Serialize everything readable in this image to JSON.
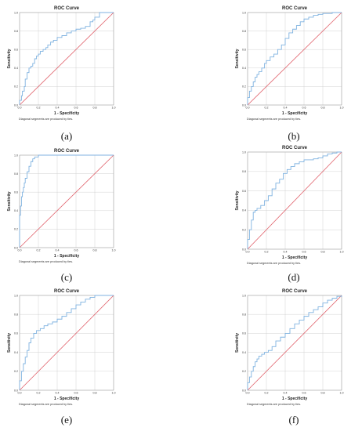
{
  "chart_data": [
    {
      "panel": "(a)",
      "type": "line",
      "title": "ROC Curve",
      "xlabel": "1 - Specificity",
      "ylabel": "Sensitivity",
      "footnote": "Diagonal segments are produced by ties.",
      "xlim": [
        0,
        1
      ],
      "ylim": [
        0,
        1
      ],
      "ticks": [
        "0.0",
        "0.2",
        "0.4",
        "0.6",
        "0.8",
        "1.0"
      ],
      "grid": true,
      "series": [
        {
          "x": [
            0,
            0,
            0.02,
            0.03,
            0.05,
            0.06,
            0.08,
            0.1,
            0.12,
            0.14,
            0.16,
            0.18,
            0.2,
            0.22,
            0.25,
            0.28,
            0.3,
            0.33,
            0.36,
            0.4,
            0.45,
            0.5,
            0.55,
            0.6,
            0.65,
            0.7,
            0.75,
            0.78,
            0.8,
            0.85,
            1.0
          ],
          "y": [
            0,
            0.05,
            0.1,
            0.15,
            0.2,
            0.28,
            0.35,
            0.4,
            0.42,
            0.45,
            0.5,
            0.53,
            0.55,
            0.58,
            0.6,
            0.62,
            0.65,
            0.68,
            0.7,
            0.73,
            0.75,
            0.78,
            0.8,
            0.82,
            0.83,
            0.85,
            0.9,
            0.92,
            0.95,
            1.0,
            1.0
          ]
        },
        {
          "x": [
            0,
            1
          ],
          "y": [
            0,
            1
          ]
        }
      ]
    },
    {
      "panel": "(b)",
      "type": "line",
      "title": "ROC Curve",
      "xlabel": "1 - Specificity",
      "ylabel": "Sensitivity",
      "footnote": "Diagonal segments are produced by ties.",
      "xlim": [
        0,
        1
      ],
      "ylim": [
        0,
        1
      ],
      "ticks": [
        "0.0",
        "0.2",
        "0.4",
        "0.6",
        "0.8",
        "1.0"
      ],
      "grid": true,
      "series": [
        {
          "x": [
            0,
            0,
            0.02,
            0.04,
            0.06,
            0.08,
            0.1,
            0.12,
            0.15,
            0.18,
            0.2,
            0.24,
            0.28,
            0.32,
            0.36,
            0.4,
            0.44,
            0.48,
            0.52,
            0.56,
            0.6,
            0.65,
            0.7,
            0.75,
            0.8,
            0.9,
            1.0
          ],
          "y": [
            0,
            0.08,
            0.15,
            0.2,
            0.25,
            0.3,
            0.33,
            0.36,
            0.4,
            0.45,
            0.48,
            0.52,
            0.55,
            0.6,
            0.65,
            0.72,
            0.78,
            0.82,
            0.86,
            0.9,
            0.93,
            0.95,
            0.97,
            0.98,
            0.99,
            1.0,
            1.0
          ]
        },
        {
          "x": [
            0,
            1
          ],
          "y": [
            0,
            1
          ]
        }
      ]
    },
    {
      "panel": "(c)",
      "type": "line",
      "title": "ROC Curve",
      "xlabel": "1 - Specificity",
      "ylabel": "Sensitivity",
      "footnote": "Diagonal segments are produced by ties.",
      "xlim": [
        0,
        1
      ],
      "ylim": [
        0,
        1
      ],
      "ticks": [
        "0.0",
        "0.2",
        "0.4",
        "0.6",
        "0.8",
        "1.0"
      ],
      "grid": true,
      "series": [
        {
          "x": [
            0,
            0,
            0.01,
            0.02,
            0.03,
            0.04,
            0.05,
            0.06,
            0.08,
            0.1,
            0.12,
            0.14,
            0.16,
            0.2,
            0.25,
            0.3,
            0.4,
            0.5,
            0.6,
            0.7,
            0.8,
            1.0
          ],
          "y": [
            0,
            0.35,
            0.45,
            0.55,
            0.6,
            0.65,
            0.7,
            0.75,
            0.82,
            0.88,
            0.93,
            0.96,
            0.98,
            1.0,
            1.0,
            1.0,
            1.0,
            1.0,
            1.0,
            1.0,
            1.0,
            1.0
          ]
        },
        {
          "x": [
            0,
            1
          ],
          "y": [
            0,
            1
          ]
        }
      ]
    },
    {
      "panel": "(d)",
      "type": "line",
      "title": "ROC Curve",
      "xlabel": "1 - Specificity",
      "ylabel": "Sensitivity",
      "footnote": "Diagonal segments are produced by ties.",
      "xlim": [
        0,
        1
      ],
      "ylim": [
        0,
        1
      ],
      "ticks": [
        "0.0",
        "0.2",
        "0.4",
        "0.6",
        "0.8",
        "1.0"
      ],
      "grid": true,
      "series": [
        {
          "x": [
            0,
            0,
            0.02,
            0.04,
            0.06,
            0.08,
            0.1,
            0.14,
            0.18,
            0.22,
            0.26,
            0.3,
            0.34,
            0.38,
            0.42,
            0.46,
            0.5,
            0.55,
            0.6,
            0.65,
            0.7,
            0.75,
            0.8,
            0.85,
            0.9,
            0.95,
            1.0
          ],
          "y": [
            0,
            0.1,
            0.2,
            0.3,
            0.38,
            0.4,
            0.42,
            0.45,
            0.5,
            0.55,
            0.62,
            0.68,
            0.72,
            0.78,
            0.82,
            0.85,
            0.88,
            0.9,
            0.92,
            0.92,
            0.93,
            0.94,
            0.96,
            0.98,
            0.99,
            1.0,
            1.0
          ]
        },
        {
          "x": [
            0,
            1
          ],
          "y": [
            0,
            1
          ]
        }
      ]
    },
    {
      "panel": "(e)",
      "type": "line",
      "title": "ROC Curve",
      "xlabel": "1 - Specificity",
      "ylabel": "Sensitivity",
      "footnote": "Diagonal segments are produced by ties.",
      "xlim": [
        0,
        1
      ],
      "ylim": [
        0,
        1
      ],
      "ticks": [
        "0.0",
        "0.2",
        "0.4",
        "0.6",
        "0.8",
        "1.0"
      ],
      "grid": true,
      "series": [
        {
          "x": [
            0,
            0,
            0.02,
            0.04,
            0.06,
            0.08,
            0.1,
            0.12,
            0.15,
            0.18,
            0.22,
            0.26,
            0.3,
            0.35,
            0.4,
            0.45,
            0.5,
            0.55,
            0.6,
            0.65,
            0.7,
            0.75,
            0.8,
            0.9,
            1.0
          ],
          "y": [
            0,
            0.1,
            0.2,
            0.28,
            0.35,
            0.42,
            0.5,
            0.55,
            0.6,
            0.63,
            0.65,
            0.68,
            0.7,
            0.72,
            0.75,
            0.78,
            0.82,
            0.86,
            0.9,
            0.93,
            0.96,
            0.98,
            1.0,
            1.0,
            1.0
          ]
        },
        {
          "x": [
            0,
            1
          ],
          "y": [
            0,
            1
          ]
        }
      ]
    },
    {
      "panel": "(f)",
      "type": "line",
      "title": "ROC Curve",
      "xlabel": "1 - Specificity",
      "ylabel": "Sensitivity",
      "footnote": "Diagonal segments are produced by ties.",
      "xlim": [
        0,
        1
      ],
      "ylim": [
        0,
        1
      ],
      "ticks": [
        "0.0",
        "0.2",
        "0.4",
        "0.6",
        "0.8",
        "1.0"
      ],
      "grid": true,
      "series": [
        {
          "x": [
            0,
            0,
            0.02,
            0.04,
            0.06,
            0.08,
            0.1,
            0.12,
            0.15,
            0.18,
            0.22,
            0.26,
            0.3,
            0.35,
            0.4,
            0.45,
            0.5,
            0.55,
            0.6,
            0.65,
            0.7,
            0.75,
            0.8,
            0.85,
            0.9,
            0.95,
            1.0
          ],
          "y": [
            0,
            0.08,
            0.14,
            0.2,
            0.25,
            0.3,
            0.33,
            0.36,
            0.38,
            0.4,
            0.42,
            0.46,
            0.52,
            0.56,
            0.6,
            0.65,
            0.7,
            0.74,
            0.78,
            0.82,
            0.85,
            0.88,
            0.92,
            0.95,
            0.97,
            0.99,
            1.0
          ]
        },
        {
          "x": [
            0,
            1
          ],
          "y": [
            0,
            1
          ]
        }
      ]
    }
  ],
  "colors": {
    "roc": "#7fb2e0",
    "reference": "#e0606a",
    "grid": "#c8c8c8",
    "frame": "#999999"
  }
}
